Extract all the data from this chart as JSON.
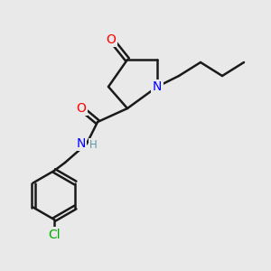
{
  "background_color": "#e9e9e9",
  "bond_color": "#1a1a1a",
  "bond_lw": 1.8,
  "atom_colors": {
    "O": "#ff0000",
    "N": "#0000ff",
    "Cl": "#00aa00",
    "C": "#1a1a1a"
  },
  "font_size": 10,
  "font_size_small": 8.5
}
